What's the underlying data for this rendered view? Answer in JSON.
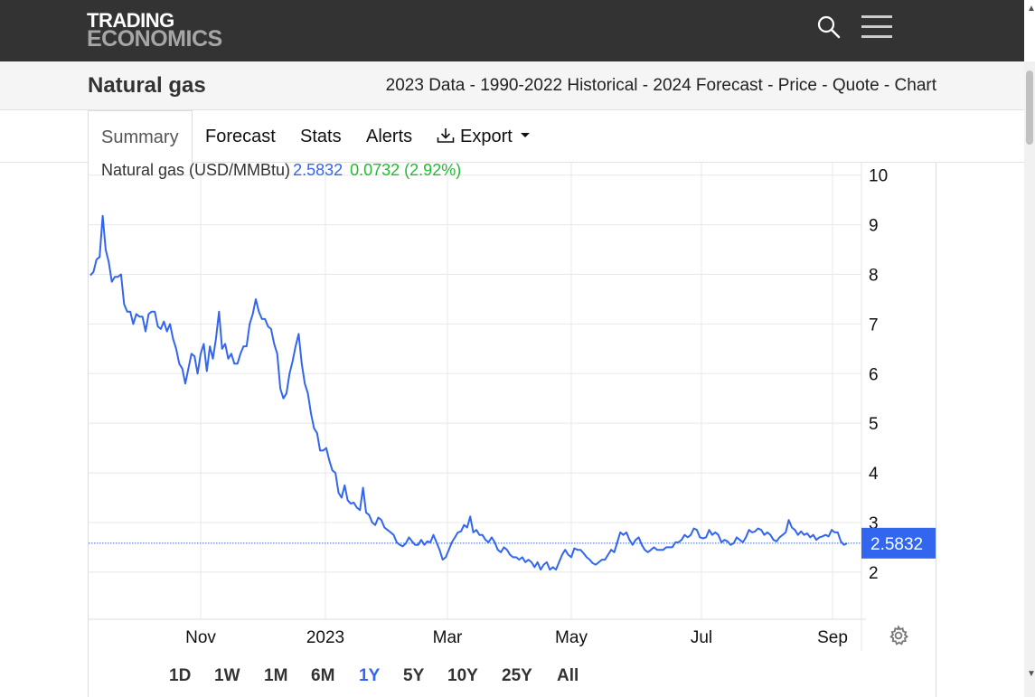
{
  "header": {
    "logo_line1": "TRADING",
    "logo_line2": "ECONOMICS",
    "search_icon": "search-icon",
    "menu_icon": "hamburger-menu-icon"
  },
  "title": {
    "name": "Natural gas",
    "links": "2023 Data - 1990-2022 Historical - 2024 Forecast - Price - Quote - Chart"
  },
  "tabs": {
    "summary": "Summary",
    "forecast": "Forecast",
    "stats": "Stats",
    "alerts": "Alerts",
    "export": "Export"
  },
  "legend": {
    "name": "Natural gas (USD/MMBtu)",
    "price": "2.5832",
    "change": "0.0732 (2.92%)"
  },
  "ranges": [
    "1D",
    "1W",
    "1M",
    "6M",
    "1Y",
    "5Y",
    "10Y",
    "25Y",
    "All"
  ],
  "active_range": "1Y",
  "colors": {
    "line": "#3366ee",
    "up": "#22bb33",
    "header_bg": "#333333"
  },
  "chart_data": {
    "type": "line",
    "title": "",
    "xlabel": "",
    "ylabel": "",
    "x_tick_labels": [
      "Nov",
      "2023",
      "Mar",
      "May",
      "Jul",
      "Sep"
    ],
    "y_ticks": [
      2,
      3,
      4,
      5,
      6,
      7,
      8,
      9,
      10
    ],
    "ylim": [
      1.05,
      10.25
    ],
    "last_value_label": "2.5832",
    "series": [
      {
        "values": [
          7.98,
          8.05,
          8.3,
          8.35,
          9.18,
          8.5,
          8.25,
          7.85,
          7.95,
          7.95,
          8.0,
          7.4,
          7.25,
          7.25,
          7.0,
          7.2,
          7.15,
          7.15,
          6.85,
          7.2,
          7.25,
          7.25,
          6.95,
          6.9,
          7.05,
          6.85,
          7.0,
          6.7,
          6.5,
          6.2,
          6.1,
          5.8,
          6.1,
          6.4,
          6.35,
          6.0,
          6.4,
          6.6,
          6.05,
          6.55,
          6.3,
          6.7,
          7.25,
          6.5,
          6.6,
          6.3,
          6.4,
          6.2,
          6.2,
          6.4,
          6.55,
          6.55,
          7.0,
          7.2,
          7.5,
          7.25,
          7.1,
          7.1,
          6.95,
          6.9,
          6.6,
          6.4,
          5.7,
          5.5,
          5.6,
          6.0,
          6.25,
          6.55,
          6.8,
          6.2,
          5.8,
          5.6,
          5.2,
          4.9,
          4.8,
          4.45,
          4.45,
          4.5,
          4.25,
          4.05,
          4.0,
          3.6,
          3.5,
          3.75,
          3.45,
          3.38,
          3.4,
          3.3,
          3.25,
          3.7,
          3.2,
          3.15,
          3.0,
          2.95,
          3.1,
          3.05,
          2.9,
          2.85,
          2.8,
          2.75,
          2.6,
          2.55,
          2.52,
          2.58,
          2.7,
          2.62,
          2.55,
          2.55,
          2.65,
          2.55,
          2.62,
          2.6,
          2.75,
          2.6,
          2.45,
          2.25,
          2.3,
          2.45,
          2.6,
          2.7,
          2.8,
          2.82,
          2.95,
          2.9,
          3.12,
          2.8,
          2.85,
          2.75,
          2.75,
          2.65,
          2.6,
          2.7,
          2.6,
          2.45,
          2.4,
          2.5,
          2.45,
          2.35,
          2.3,
          2.3,
          2.25,
          2.3,
          2.2,
          2.25,
          2.2,
          2.1,
          2.2,
          2.05,
          2.15,
          2.2,
          2.05,
          2.1,
          2.05,
          2.2,
          2.35,
          2.45,
          2.35,
          2.3,
          2.48,
          2.45,
          2.45,
          2.38,
          2.3,
          2.25,
          2.18,
          2.15,
          2.2,
          2.25,
          2.25,
          2.35,
          2.45,
          2.4,
          2.6,
          2.8,
          2.75,
          2.8,
          2.65,
          2.55,
          2.65,
          2.7,
          2.55,
          2.45,
          2.4,
          2.45,
          2.5,
          2.45,
          2.45,
          2.45,
          2.5,
          2.5,
          2.5,
          2.6,
          2.6,
          2.65,
          2.75,
          2.7,
          2.75,
          2.88,
          2.85,
          2.7,
          2.68,
          2.7,
          2.85,
          2.75,
          2.8,
          2.75,
          2.6,
          2.65,
          2.62,
          2.55,
          2.58,
          2.7,
          2.65,
          2.6,
          2.7,
          2.85,
          2.8,
          2.82,
          2.88,
          2.85,
          2.75,
          2.8,
          2.75,
          2.65,
          2.62,
          2.7,
          2.75,
          2.8,
          3.05,
          2.9,
          2.85,
          2.75,
          2.82,
          2.75,
          2.78,
          2.7,
          2.75,
          2.65,
          2.7,
          2.72,
          2.75,
          2.72,
          2.85,
          2.8,
          2.8,
          2.62,
          2.55,
          2.58
        ]
      }
    ]
  }
}
